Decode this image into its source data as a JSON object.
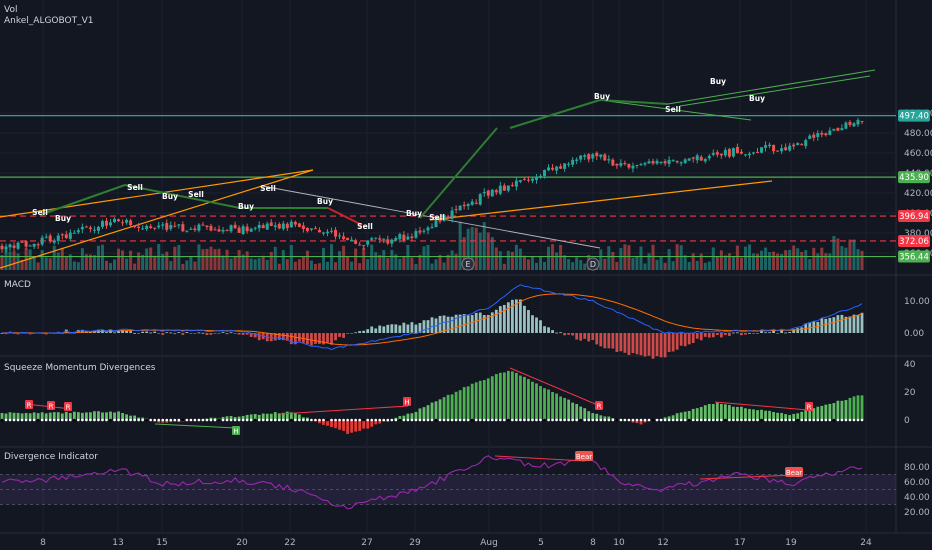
{
  "main_pane": {
    "indicator_label": "Vol",
    "strategy_label": "Ankel_ALGOBOT_V1",
    "price_ticks": [
      "500.00",
      "480.00",
      "460.00",
      "440.00",
      "420.00",
      "400.00",
      "380.00",
      "360.00"
    ],
    "price_badges": [
      {
        "value": "497.40",
        "color": "#26a69a"
      },
      {
        "value": "435.90",
        "color": "#4caf50"
      },
      {
        "value": "396.94",
        "color": "#f23645"
      },
      {
        "value": "372.06",
        "color": "#f23645"
      },
      {
        "value": "356.44",
        "color": "#4caf50"
      }
    ],
    "signals": [
      "Sell",
      "Buy",
      "Sell",
      "Buy",
      "Sell",
      "Buy",
      "Sell",
      "Buy",
      "Sell",
      "Buy",
      "Sell",
      "Buy",
      "Sell",
      "Buy"
    ],
    "event_markers": [
      "E",
      "D"
    ]
  },
  "macd_pane": {
    "title": "MACD",
    "ticks": [
      "10.00",
      "0.00"
    ]
  },
  "squeeze_pane": {
    "title": "Squeeze Momentum Divergences",
    "ticks": [
      "40",
      "20",
      "0"
    ],
    "markers": [
      "R",
      "R",
      "R",
      "H",
      "R",
      "H",
      "R"
    ]
  },
  "divergence_pane": {
    "title": "Divergence Indicator",
    "ticks": [
      "80.00",
      "60.00",
      "40.00",
      "20.00"
    ],
    "labels": [
      "Bear",
      "Bear"
    ]
  },
  "x_axis": {
    "ticks": [
      "8",
      "13",
      "15",
      "20",
      "22",
      "27",
      "29",
      "Aug",
      "5",
      "8",
      "10",
      "12",
      "17",
      "19",
      "24"
    ]
  },
  "colors": {
    "background": "#131722",
    "up": "#26a69a",
    "down": "#ef5350",
    "macd_line": "#2962ff",
    "signal_line": "#ff6d00",
    "rsi": "#9c27b0",
    "support": "#4caf50",
    "resistance": "#f23645",
    "trend": "#ff9800"
  },
  "chart_data": [
    {
      "type": "candlestick",
      "y_axis_ticks": [
        360,
        380,
        400,
        420,
        440,
        460,
        480,
        500
      ],
      "ylim": [
        352,
        505
      ],
      "horizontal_levels": [
        497.4,
        435.9,
        396.94,
        372.06,
        356.44
      ],
      "close_waypoints": [
        {
          "x": "8",
          "value": 372
        },
        {
          "x": "13",
          "value": 392
        },
        {
          "x": "15",
          "value": 385
        },
        {
          "x": "20",
          "value": 384
        },
        {
          "x": "22",
          "value": 388
        },
        {
          "x": "27",
          "value": 370
        },
        {
          "x": "29",
          "value": 378
        },
        {
          "x": "Aug",
          "value": 420
        },
        {
          "x": "5",
          "value": 440
        },
        {
          "x": "8",
          "value": 458
        },
        {
          "x": "10",
          "value": 448
        },
        {
          "x": "12",
          "value": 450
        },
        {
          "x": "17",
          "value": 462
        },
        {
          "x": "19",
          "value": 466
        },
        {
          "x": "24",
          "value": 497
        }
      ]
    },
    {
      "type": "line",
      "name": "MACD",
      "y_axis_ticks": [
        0,
        10
      ],
      "ylim": [
        -9,
        17
      ],
      "series": [
        {
          "name": "MACD",
          "x": [
            "8",
            "13",
            "20",
            "25",
            "29",
            "Aug",
            "3",
            "8",
            "12",
            "19",
            "24"
          ],
          "values": [
            0,
            1,
            0.5,
            -5,
            0,
            8,
            15,
            10,
            0,
            1,
            9
          ]
        }
      ]
    },
    {
      "type": "bar",
      "name": "Squeeze Momentum",
      "y_axis_ticks": [
        0,
        20,
        40
      ],
      "ylim": [
        -12,
        40
      ],
      "x": [
        "8",
        "13",
        "15",
        "20",
        "22",
        "25",
        "29",
        "Aug",
        "3",
        "8",
        "10",
        "15",
        "19",
        "24"
      ],
      "values": [
        5,
        6,
        -2,
        3,
        6,
        -10,
        6,
        25,
        36,
        5,
        -3,
        12,
        4,
        18
      ]
    },
    {
      "type": "line",
      "name": "Divergence Indicator",
      "y_axis_ticks": [
        20,
        40,
        60,
        80
      ],
      "ylim": [
        17,
        97
      ],
      "x": [
        "8",
        "13",
        "15",
        "20",
        "22",
        "25",
        "29",
        "Aug",
        "5",
        "8",
        "10",
        "12",
        "17",
        "19",
        "24"
      ],
      "values": [
        62,
        78,
        58,
        62,
        52,
        25,
        48,
        92,
        82,
        88,
        60,
        50,
        70,
        58,
        82
      ]
    }
  ]
}
